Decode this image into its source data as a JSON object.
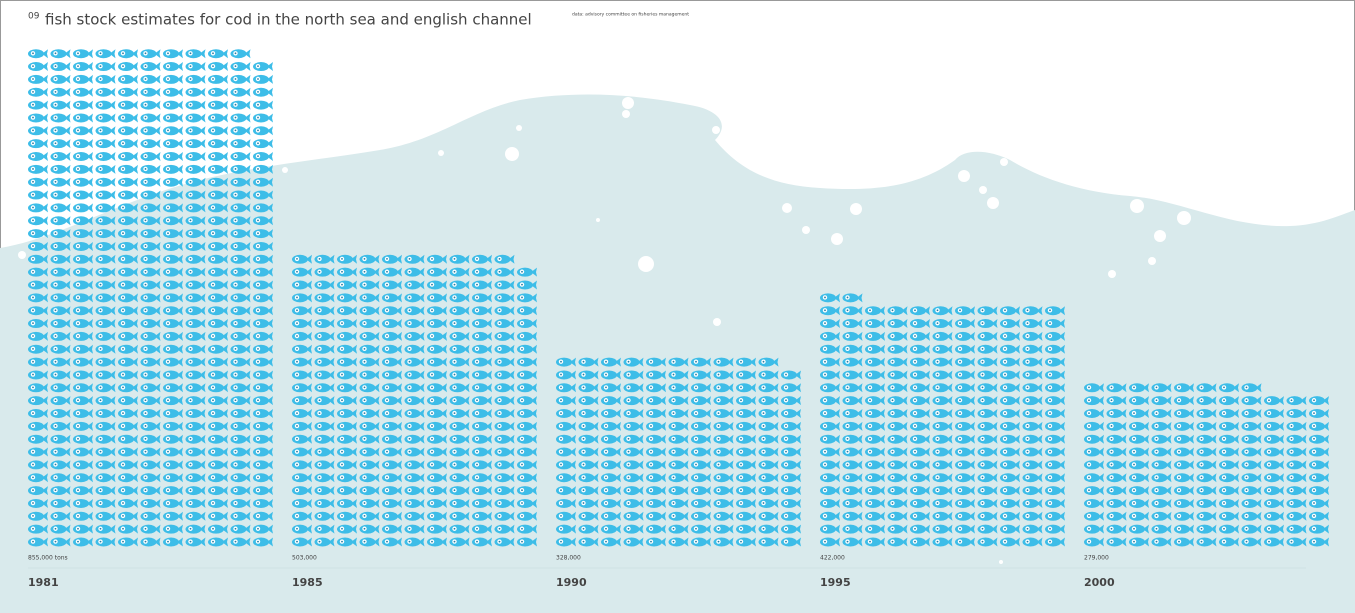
{
  "chart_data": {
    "type": "pictograph",
    "number": "09",
    "title": "fish stock estimates for cod in the north sea and english channel",
    "subtitle": "data: advisory committee on fisheries management",
    "categories": [
      "1981",
      "1985",
      "1990",
      "1995",
      "2000"
    ],
    "values": [
      855000,
      503000,
      328000,
      422000,
      279000
    ],
    "value_labels": [
      "855,000 tons",
      "503,000",
      "328,000",
      "422,000",
      "279,000"
    ],
    "color": "#3dbde8"
  }
}
